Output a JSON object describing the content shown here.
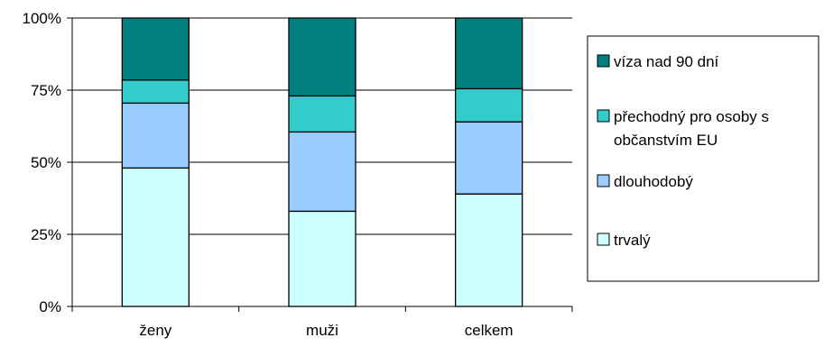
{
  "chart_data": {
    "type": "bar",
    "stacked": true,
    "percent_stacked": true,
    "title": "",
    "xlabel": "",
    "ylabel": "",
    "categories": [
      "ženy",
      "muži",
      "celkem"
    ],
    "y_ticks": [
      "0%",
      "25%",
      "50%",
      "75%",
      "100%"
    ],
    "ylim": [
      0,
      100
    ],
    "grid": true,
    "legend_position": "right",
    "series": [
      {
        "name": "trvalý",
        "color": "#CCFFFF",
        "values": [
          48,
          33,
          39
        ]
      },
      {
        "name": "dlouhodobý",
        "color": "#99CCFF",
        "values": [
          22.5,
          27.5,
          25
        ]
      },
      {
        "name": "přechodný pro osoby s občanstvím EU",
        "legend_lines": [
          "přechodný pro osoby s",
          "občanstvím EU"
        ],
        "color": "#33CCCC",
        "values": [
          8,
          12.5,
          11.5
        ]
      },
      {
        "name": "víza nad 90 dní",
        "color": "#008080",
        "values": [
          21.5,
          27,
          24.5
        ]
      }
    ]
  }
}
